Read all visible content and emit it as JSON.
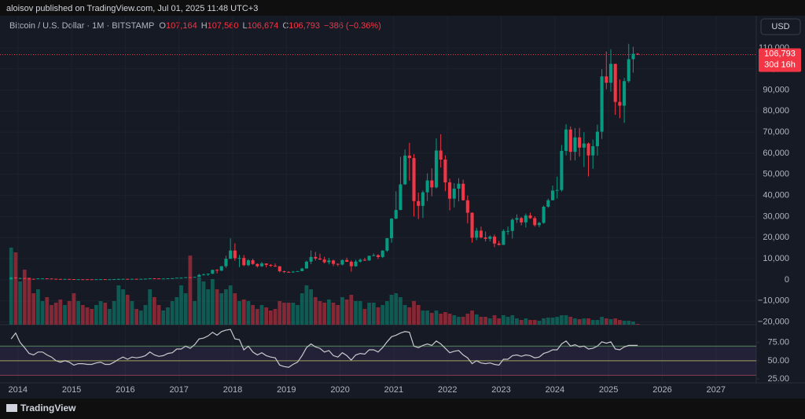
{
  "chart_data": {
    "type": "candlestick",
    "attribution": "aloisov published on TradingView.com, Jul 01, 2025 11:48 UTC+3",
    "title": "Bitcoin / U.S. Dollar · 1M · BITSTAMP",
    "legend": [
      {
        "key": "O",
        "text": "107,164"
      },
      {
        "key": "H",
        "text": "107,560"
      },
      {
        "key": "L",
        "text": "106,674"
      },
      {
        "key": "C",
        "text": "106,793"
      }
    ],
    "change": "−386 (−0.36%)",
    "currency": "USD",
    "price_label": "106,793",
    "countdown": "30d 16h",
    "brand": "TradingView",
    "up_color": "#089981",
    "down_color": "#f23645",
    "grid": true,
    "x": [
      "2013-11",
      "2013-12",
      "2014-01",
      "2014-02",
      "2014-03",
      "2014-04",
      "2014-05",
      "2014-06",
      "2014-07",
      "2014-08",
      "2014-09",
      "2014-10",
      "2014-11",
      "2014-12",
      "2015-01",
      "2015-02",
      "2015-03",
      "2015-04",
      "2015-05",
      "2015-06",
      "2015-07",
      "2015-08",
      "2015-09",
      "2015-10",
      "2015-11",
      "2015-12",
      "2016-01",
      "2016-02",
      "2016-03",
      "2016-04",
      "2016-05",
      "2016-06",
      "2016-07",
      "2016-08",
      "2016-09",
      "2016-10",
      "2016-11",
      "2016-12",
      "2017-01",
      "2017-02",
      "2017-03",
      "2017-04",
      "2017-05",
      "2017-06",
      "2017-07",
      "2017-08",
      "2017-09",
      "2017-10",
      "2017-11",
      "2017-12",
      "2018-01",
      "2018-02",
      "2018-03",
      "2018-04",
      "2018-05",
      "2018-06",
      "2018-07",
      "2018-08",
      "2018-09",
      "2018-10",
      "2018-11",
      "2018-12",
      "2019-01",
      "2019-02",
      "2019-03",
      "2019-04",
      "2019-05",
      "2019-06",
      "2019-07",
      "2019-08",
      "2019-09",
      "2019-10",
      "2019-11",
      "2019-12",
      "2020-01",
      "2020-02",
      "2020-03",
      "2020-04",
      "2020-05",
      "2020-06",
      "2020-07",
      "2020-08",
      "2020-09",
      "2020-10",
      "2020-11",
      "2020-12",
      "2021-01",
      "2021-02",
      "2021-03",
      "2021-04",
      "2021-05",
      "2021-06",
      "2021-07",
      "2021-08",
      "2021-09",
      "2021-10",
      "2021-11",
      "2021-12",
      "2022-01",
      "2022-02",
      "2022-03",
      "2022-04",
      "2022-05",
      "2022-06",
      "2022-07",
      "2022-08",
      "2022-09",
      "2022-10",
      "2022-11",
      "2022-12",
      "2023-01",
      "2023-02",
      "2023-03",
      "2023-04",
      "2023-05",
      "2023-06",
      "2023-07",
      "2023-08",
      "2023-09",
      "2023-10",
      "2023-11",
      "2023-12",
      "2024-01",
      "2024-02",
      "2024-03",
      "2024-04",
      "2024-05",
      "2024-06",
      "2024-07",
      "2024-08",
      "2024-09",
      "2024-10",
      "2024-11",
      "2024-12",
      "2025-01",
      "2025-02",
      "2025-03",
      "2025-04",
      "2025-05",
      "2025-06",
      "2025-07"
    ],
    "open": [
      204,
      1130,
      730,
      800,
      550,
      450,
      445,
      630,
      640,
      585,
      480,
      385,
      338,
      378,
      320,
      217,
      254,
      244,
      236,
      230,
      263,
      284,
      230,
      236,
      314,
      377,
      430,
      368,
      437,
      416,
      448,
      531,
      673,
      624,
      575,
      609,
      700,
      742,
      963,
      970,
      1190,
      1080,
      1348,
      2300,
      2480,
      2875,
      4700,
      4340,
      6440,
      9950,
      13850,
      10220,
      10330,
      6930,
      9240,
      7490,
      6390,
      7730,
      7030,
      6630,
      6370,
      4040,
      3740,
      3460,
      3830,
      4100,
      5320,
      8570,
      10820,
      10080,
      9600,
      8300,
      9150,
      7550,
      7190,
      9350,
      8540,
      6420,
      8630,
      9460,
      9140,
      11350,
      11650,
      10780,
      13800,
      19700,
      28990,
      33110,
      45240,
      58920,
      57720,
      37330,
      35040,
      41460,
      47100,
      43820,
      61300,
      57000,
      46200,
      38480,
      43190,
      45540,
      37710,
      31790,
      19940,
      23300,
      20050,
      19420,
      20490,
      17170,
      16540,
      23130,
      23150,
      28480,
      29250,
      27220,
      30470,
      29230,
      25940,
      26970,
      34640,
      37720,
      42280,
      42580,
      61130,
      71280,
      60670,
      67530,
      62680,
      64620,
      58970,
      63330,
      70220,
      96450,
      93430,
      102400,
      84350,
      82550,
      94200,
      104600,
      107164
    ],
    "high": [
      1163,
      1150,
      1000,
      800,
      700,
      550,
      630,
      680,
      650,
      600,
      500,
      410,
      460,
      390,
      320,
      265,
      300,
      260,
      250,
      265,
      318,
      285,
      250,
      335,
      500,
      470,
      460,
      440,
      440,
      460,
      550,
      780,
      705,
      620,
      615,
      720,
      755,
      975,
      1150,
      1200,
      1290,
      1350,
      2760,
      3000,
      2930,
      4770,
      5000,
      6470,
      11400,
      19666,
      17250,
      11790,
      11700,
      9760,
      10000,
      7780,
      8500,
      7770,
      7420,
      7680,
      6550,
      4350,
      4070,
      4200,
      4130,
      5620,
      9100,
      13880,
      13200,
      12330,
      10920,
      10380,
      9510,
      7760,
      9580,
      10500,
      9200,
      9450,
      10070,
      10390,
      11450,
      12470,
      12070,
      14100,
      19880,
      29300,
      41950,
      58350,
      61800,
      64900,
      59600,
      41330,
      42300,
      50480,
      52850,
      67000,
      69000,
      59040,
      47950,
      45800,
      48150,
      47450,
      40000,
      31950,
      24650,
      25200,
      22800,
      21090,
      21450,
      18400,
      23950,
      25250,
      29190,
      31000,
      29800,
      31400,
      31800,
      30150,
      27450,
      35200,
      38420,
      44700,
      48900,
      63900,
      73800,
      72750,
      71950,
      72000,
      70000,
      65100,
      66500,
      73600,
      99800,
      108300,
      109350,
      102500,
      95000,
      95750,
      111900,
      110500,
      107560
    ],
    "low": [
      195,
      520,
      730,
      410,
      420,
      340,
      430,
      560,
      570,
      450,
      370,
      320,
      275,
      310,
      170,
      210,
      235,
      215,
      220,
      220,
      250,
      200,
      225,
      236,
      310,
      350,
      350,
      365,
      400,
      410,
      440,
      520,
      530,
      470,
      590,
      605,
      690,
      740,
      750,
      920,
      900,
      1060,
      1360,
      2200,
      1840,
      2700,
      2970,
      4110,
      5600,
      9900,
      9000,
      6000,
      6430,
      6450,
      7000,
      5780,
      6100,
      5880,
      6120,
      6220,
      3480,
      3120,
      3350,
      3380,
      3780,
      4050,
      5370,
      7440,
      9100,
      9340,
      7710,
      7300,
      6520,
      6430,
      6850,
      8440,
      3850,
      6150,
      8120,
      8900,
      9000,
      11100,
      9880,
      10370,
      13200,
      17560,
      28700,
      33000,
      45000,
      47000,
      30000,
      28800,
      29300,
      37300,
      39600,
      43300,
      53250,
      42000,
      32950,
      34320,
      37170,
      37580,
      26700,
      17600,
      18780,
      19560,
      18150,
      18180,
      15480,
      16260,
      16490,
      21350,
      19570,
      26950,
      25820,
      24800,
      28850,
      25160,
      24900,
      26550,
      34100,
      37600,
      38500,
      41880,
      59000,
      56550,
      56560,
      58420,
      53500,
      49000,
      52600,
      58900,
      66800,
      90400,
      89200,
      78200,
      76600,
      74400,
      93400,
      98200,
      106674
    ],
    "close": [
      1130,
      730,
      800,
      550,
      450,
      445,
      630,
      640,
      585,
      480,
      385,
      338,
      378,
      320,
      217,
      254,
      244,
      236,
      230,
      263,
      284,
      230,
      236,
      314,
      377,
      430,
      368,
      437,
      416,
      448,
      531,
      673,
      624,
      575,
      609,
      700,
      742,
      963,
      970,
      1190,
      1080,
      1348,
      2300,
      2480,
      2875,
      4700,
      4340,
      6440,
      9950,
      13850,
      10220,
      10330,
      6930,
      9240,
      7490,
      6390,
      7730,
      7030,
      6630,
      6370,
      4040,
      3740,
      3460,
      3830,
      4100,
      5320,
      8570,
      10820,
      10080,
      9600,
      8300,
      9150,
      7550,
      7190,
      9350,
      8540,
      6420,
      8630,
      9460,
      9140,
      11350,
      11650,
      10780,
      13800,
      19700,
      28990,
      33110,
      45240,
      58920,
      57720,
      37330,
      35040,
      41460,
      47100,
      43820,
      61300,
      57000,
      46200,
      38480,
      43190,
      45540,
      37710,
      31790,
      19940,
      23300,
      20050,
      19420,
      20490,
      17170,
      16540,
      23130,
      23150,
      28480,
      29250,
      27220,
      30470,
      29230,
      25940,
      26970,
      34640,
      37720,
      42280,
      42580,
      61130,
      71280,
      60670,
      67530,
      62680,
      64620,
      58970,
      63330,
      70220,
      96450,
      93430,
      102400,
      84350,
      82550,
      94200,
      104600,
      107164,
      106793
    ],
    "volume": [
      98,
      92,
      55,
      70,
      60,
      40,
      45,
      30,
      35,
      25,
      28,
      32,
      25,
      30,
      40,
      30,
      25,
      22,
      20,
      25,
      30,
      28,
      20,
      30,
      50,
      45,
      38,
      30,
      20,
      18,
      25,
      45,
      35,
      25,
      18,
      22,
      30,
      35,
      50,
      40,
      88,
      30,
      60,
      55,
      45,
      58,
      45,
      40,
      45,
      50,
      40,
      30,
      32,
      30,
      25,
      20,
      25,
      22,
      18,
      20,
      30,
      28,
      28,
      28,
      25,
      40,
      50,
      45,
      35,
      30,
      28,
      32,
      28,
      25,
      35,
      32,
      38,
      30,
      30,
      20,
      28,
      28,
      22,
      25,
      30,
      38,
      40,
      35,
      25,
      22,
      30,
      25,
      18,
      18,
      15,
      18,
      14,
      16,
      14,
      12,
      10,
      10,
      14,
      18,
      13,
      10,
      10,
      8,
      12,
      8,
      12,
      10,
      12,
      8,
      6,
      8,
      6,
      6,
      5,
      8,
      9,
      9,
      10,
      12,
      12,
      10,
      8,
      7,
      8,
      8,
      6,
      6,
      10,
      8,
      7,
      8,
      6,
      5,
      5,
      4,
      1
    ],
    "xlim": [
      "2013-09",
      "2027-10"
    ],
    "xticks": [
      "2014",
      "2015",
      "2016",
      "2017",
      "2018",
      "2019",
      "2020",
      "2021",
      "2022",
      "2023",
      "2024",
      "2025",
      "2026",
      "2027"
    ],
    "ylim": [
      -21300,
      121500
    ],
    "yticks": [
      {
        "value": 110000,
        "label": "110,000"
      },
      {
        "value": 100000,
        "label": "100,000"
      },
      {
        "value": 90000,
        "label": "90,000"
      },
      {
        "value": 80000,
        "label": "80,000"
      },
      {
        "value": 70000,
        "label": "70,000"
      },
      {
        "value": 60000,
        "label": "60,000"
      },
      {
        "value": 50000,
        "label": "50,000"
      },
      {
        "value": 40000,
        "label": "40,000"
      },
      {
        "value": 30000,
        "label": "30,000"
      },
      {
        "value": 20000,
        "label": "20,000"
      },
      {
        "value": 10000,
        "label": "10,000"
      },
      0,
      {
        "value": -10000,
        "label": "−10,000"
      },
      {
        "value": -20000,
        "label": "−20,000"
      }
    ],
    "rsi": {
      "color": "#c9c9cc",
      "band_fill": "rgba(126,87,194,0.12)",
      "ylim": [
        19.7,
        97.3
      ],
      "yticks": [
        {
          "value": 75,
          "label": "75.00"
        },
        {
          "value": 50,
          "label": "50.00"
        },
        {
          "value": 25,
          "label": "25.00"
        }
      ],
      "bands": [
        {
          "value": 70,
          "color": "#4c7a56"
        },
        {
          "value": 50,
          "color": "#8a8a52"
        },
        {
          "value": 30,
          "color": "#7a3a4a"
        }
      ],
      "values": [
        80,
        88,
        75,
        68,
        60,
        58,
        62,
        62,
        58,
        55,
        50,
        48,
        50,
        48,
        44,
        46,
        46,
        45,
        45,
        47,
        48,
        45,
        45,
        48,
        52,
        55,
        52,
        55,
        54,
        55,
        57,
        62,
        58,
        56,
        57,
        60,
        61,
        66,
        66,
        70,
        67,
        72,
        80,
        81,
        84,
        89,
        85,
        90,
        92,
        93,
        80,
        79,
        65,
        70,
        62,
        58,
        61,
        57,
        55,
        54,
        44,
        42,
        41,
        45,
        48,
        57,
        68,
        73,
        69,
        67,
        62,
        64,
        57,
        55,
        61,
        57,
        51,
        58,
        60,
        59,
        65,
        65,
        62,
        68,
        76,
        83,
        85,
        88,
        90,
        89,
        70,
        68,
        71,
        73,
        71,
        77,
        73,
        67,
        61,
        63,
        64,
        58,
        54,
        46,
        50,
        47,
        46,
        47,
        45,
        44,
        52,
        52,
        57,
        58,
        56,
        58,
        57,
        54,
        55,
        60,
        62,
        65,
        65,
        73,
        77,
        70,
        72,
        69,
        70,
        66,
        67,
        70,
        76,
        74,
        76,
        66,
        65,
        69,
        71,
        71,
        71
      ]
    }
  }
}
